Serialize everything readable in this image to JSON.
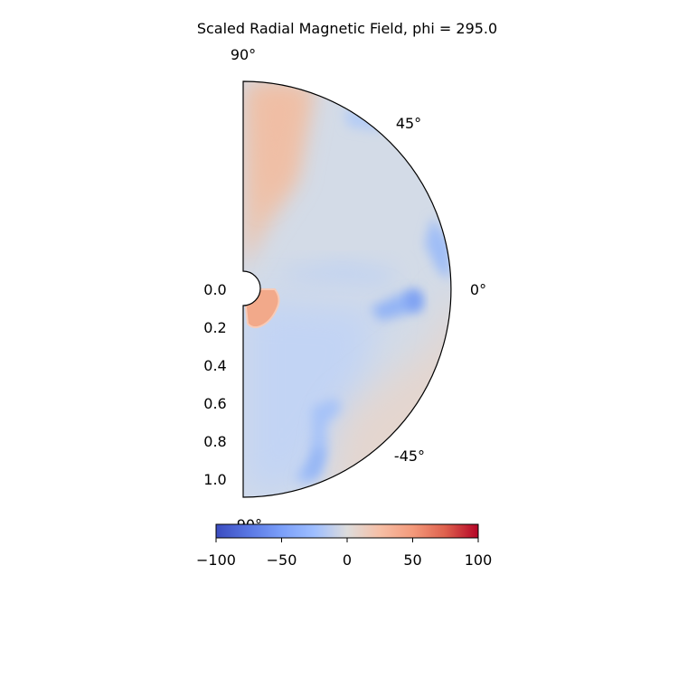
{
  "chart_data": {
    "type": "heatmap",
    "projection": "polar-half-disk",
    "title": "Scaled Radial Magnetic Field, phi = 295.0",
    "angle_range_deg": [
      -90,
      90
    ],
    "radius_range": [
      0.0,
      1.1
    ],
    "angle_tick_labels": [
      "90°",
      "45°",
      "0°",
      "-45°",
      "-90°"
    ],
    "radial_tick_labels": [
      "0.0",
      "0.2",
      "0.4",
      "0.6",
      "0.8",
      "1.0"
    ],
    "inner_radius": 0.09,
    "colormap": "coolwarm",
    "colorbar": {
      "min": -100,
      "max": 100,
      "tick_labels": [
        "−100",
        "−50",
        "0",
        "50",
        "100"
      ],
      "orientation": "horizontal",
      "placement": "bottom"
    },
    "field_regions": [
      {
        "region": "northern polar sector (60°–90°)",
        "approx_value": 25
      },
      {
        "region": "mid-latitude band (15°–60°)",
        "approx_value": -10
      },
      {
        "region": "equatorial outer streak near 0°",
        "approx_value": -45
      },
      {
        "region": "inner blob near origin, -5° to -25°",
        "approx_value": 45
      },
      {
        "region": "southern interior",
        "approx_value": -18
      },
      {
        "region": "southern strand near -55° to -70°",
        "approx_value": -40
      },
      {
        "region": "outer south-east rim",
        "approx_value": 5
      }
    ]
  }
}
